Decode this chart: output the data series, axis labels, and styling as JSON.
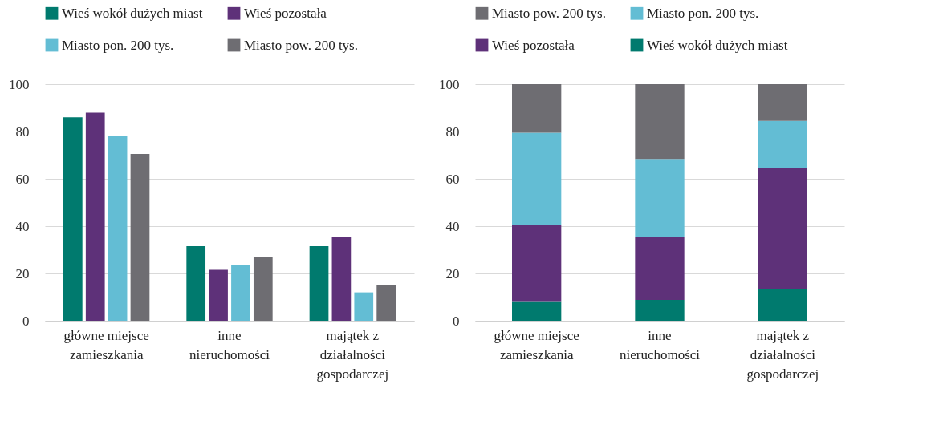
{
  "chart_data": [
    {
      "type": "bar",
      "categories": [
        "główne miejsce zamieszkania",
        "inne nieruchomości",
        "majątek z działalności gospodarczej"
      ],
      "series": [
        {
          "name": "Wieś wokół dużych miast",
          "color": "#007a6e",
          "values": [
            86,
            31.5,
            31.5
          ]
        },
        {
          "name": "Wieś pozostała",
          "color": "#5e3179",
          "values": [
            88,
            21.5,
            35.5
          ]
        },
        {
          "name": "Miasto pon. 200 tys.",
          "color": "#63bdd4",
          "values": [
            78,
            23.5,
            12
          ]
        },
        {
          "name": "Miasto pow. 200 tys.",
          "color": "#6e6d72",
          "values": [
            70.5,
            27,
            15
          ]
        }
      ],
      "ylim": [
        0,
        100
      ],
      "yticks": [
        0,
        20,
        40,
        60,
        80,
        100
      ],
      "grid": "y",
      "legend": "top"
    },
    {
      "type": "bar",
      "stacked": true,
      "categories": [
        "główne miejsce zamieszkania",
        "inne nieruchomości",
        "majątek z działalności gospodarczej"
      ],
      "series": [
        {
          "name": "Wieś wokół dużych miast",
          "color": "#007a6e",
          "values": [
            8.3,
            8.8,
            13.3
          ]
        },
        {
          "name": "Wieś pozostała",
          "color": "#5e3179",
          "values": [
            32,
            26.5,
            51.1
          ]
        },
        {
          "name": "Miasto pon. 200 tys.",
          "color": "#63bdd4",
          "values": [
            39.2,
            33.1,
            20.1
          ]
        },
        {
          "name": "Miasto pow. 200 tys.",
          "color": "#6e6d72",
          "values": [
            20.5,
            31.6,
            15.5
          ]
        }
      ],
      "ylim": [
        0,
        100
      ],
      "yticks": [
        0,
        20,
        40,
        60,
        80,
        100
      ],
      "grid": "y",
      "legend": "top"
    }
  ]
}
